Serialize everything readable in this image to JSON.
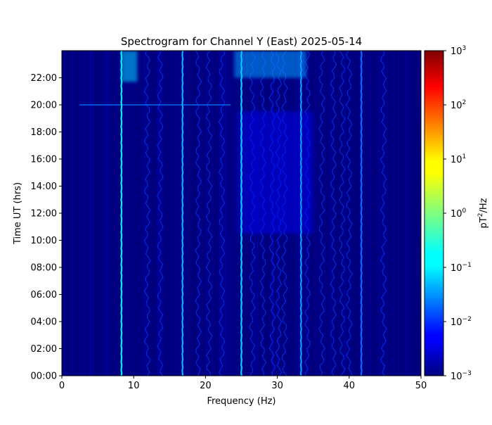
{
  "chart_data": {
    "type": "heatmap",
    "title": "Spectrogram for Channel Y (East) 2025-05-14",
    "xlabel": "Frequency (Hz)",
    "ylabel": "Time UT (hrs)",
    "xlim": [
      0,
      50
    ],
    "ylim_hours": [
      0,
      24
    ],
    "x_ticks": [
      "0",
      "10",
      "20",
      "30",
      "40",
      "50"
    ],
    "y_ticks": [
      "00:00",
      "02:00",
      "04:00",
      "06:00",
      "08:00",
      "10:00",
      "12:00",
      "14:00",
      "16:00",
      "18:00",
      "20:00",
      "22:00"
    ],
    "colorbar": {
      "label_base": "pT",
      "label_sup": "2",
      "label_tail": "/Hz",
      "scale": "log",
      "range": [
        0.001,
        1000
      ],
      "ticks": [
        {
          "base": "10",
          "exp": "3"
        },
        {
          "base": "10",
          "exp": "2"
        },
        {
          "base": "10",
          "exp": "1"
        },
        {
          "base": "10",
          "exp": "0"
        },
        {
          "base": "10",
          "exp": "−1"
        },
        {
          "base": "10",
          "exp": "−2"
        },
        {
          "base": "10",
          "exp": "−3"
        }
      ],
      "colormap": "jet"
    },
    "background_level": 0.001,
    "resonance_lines_hz": [
      8.3,
      16.8,
      25.0,
      33.3,
      41.7
    ],
    "resonance_levels": [
      0.2,
      0.08,
      0.1,
      0.06,
      0.03
    ],
    "minor_lines_hz": [
      11.9,
      13.7,
      19.0,
      20.5,
      22.3,
      26.5,
      28.0,
      29.3,
      30.2,
      31.0,
      34.2,
      36.2,
      37.8,
      39.0,
      40.0,
      44.8
    ],
    "features": [
      {
        "description_label": "",
        "x_range_hz": [
          2.5,
          23.5
        ],
        "hour": 20.0,
        "level": 0.03
      },
      {
        "description_label": "",
        "x_range_hz": [
          8.3,
          10.5
        ],
        "hour_range": [
          21.7,
          24.0
        ],
        "level": 0.1
      },
      {
        "description_label": "",
        "x_range_hz": [
          24.0,
          34.0
        ],
        "hour_range": [
          22.0,
          24.0
        ],
        "level": 0.05
      }
    ]
  }
}
